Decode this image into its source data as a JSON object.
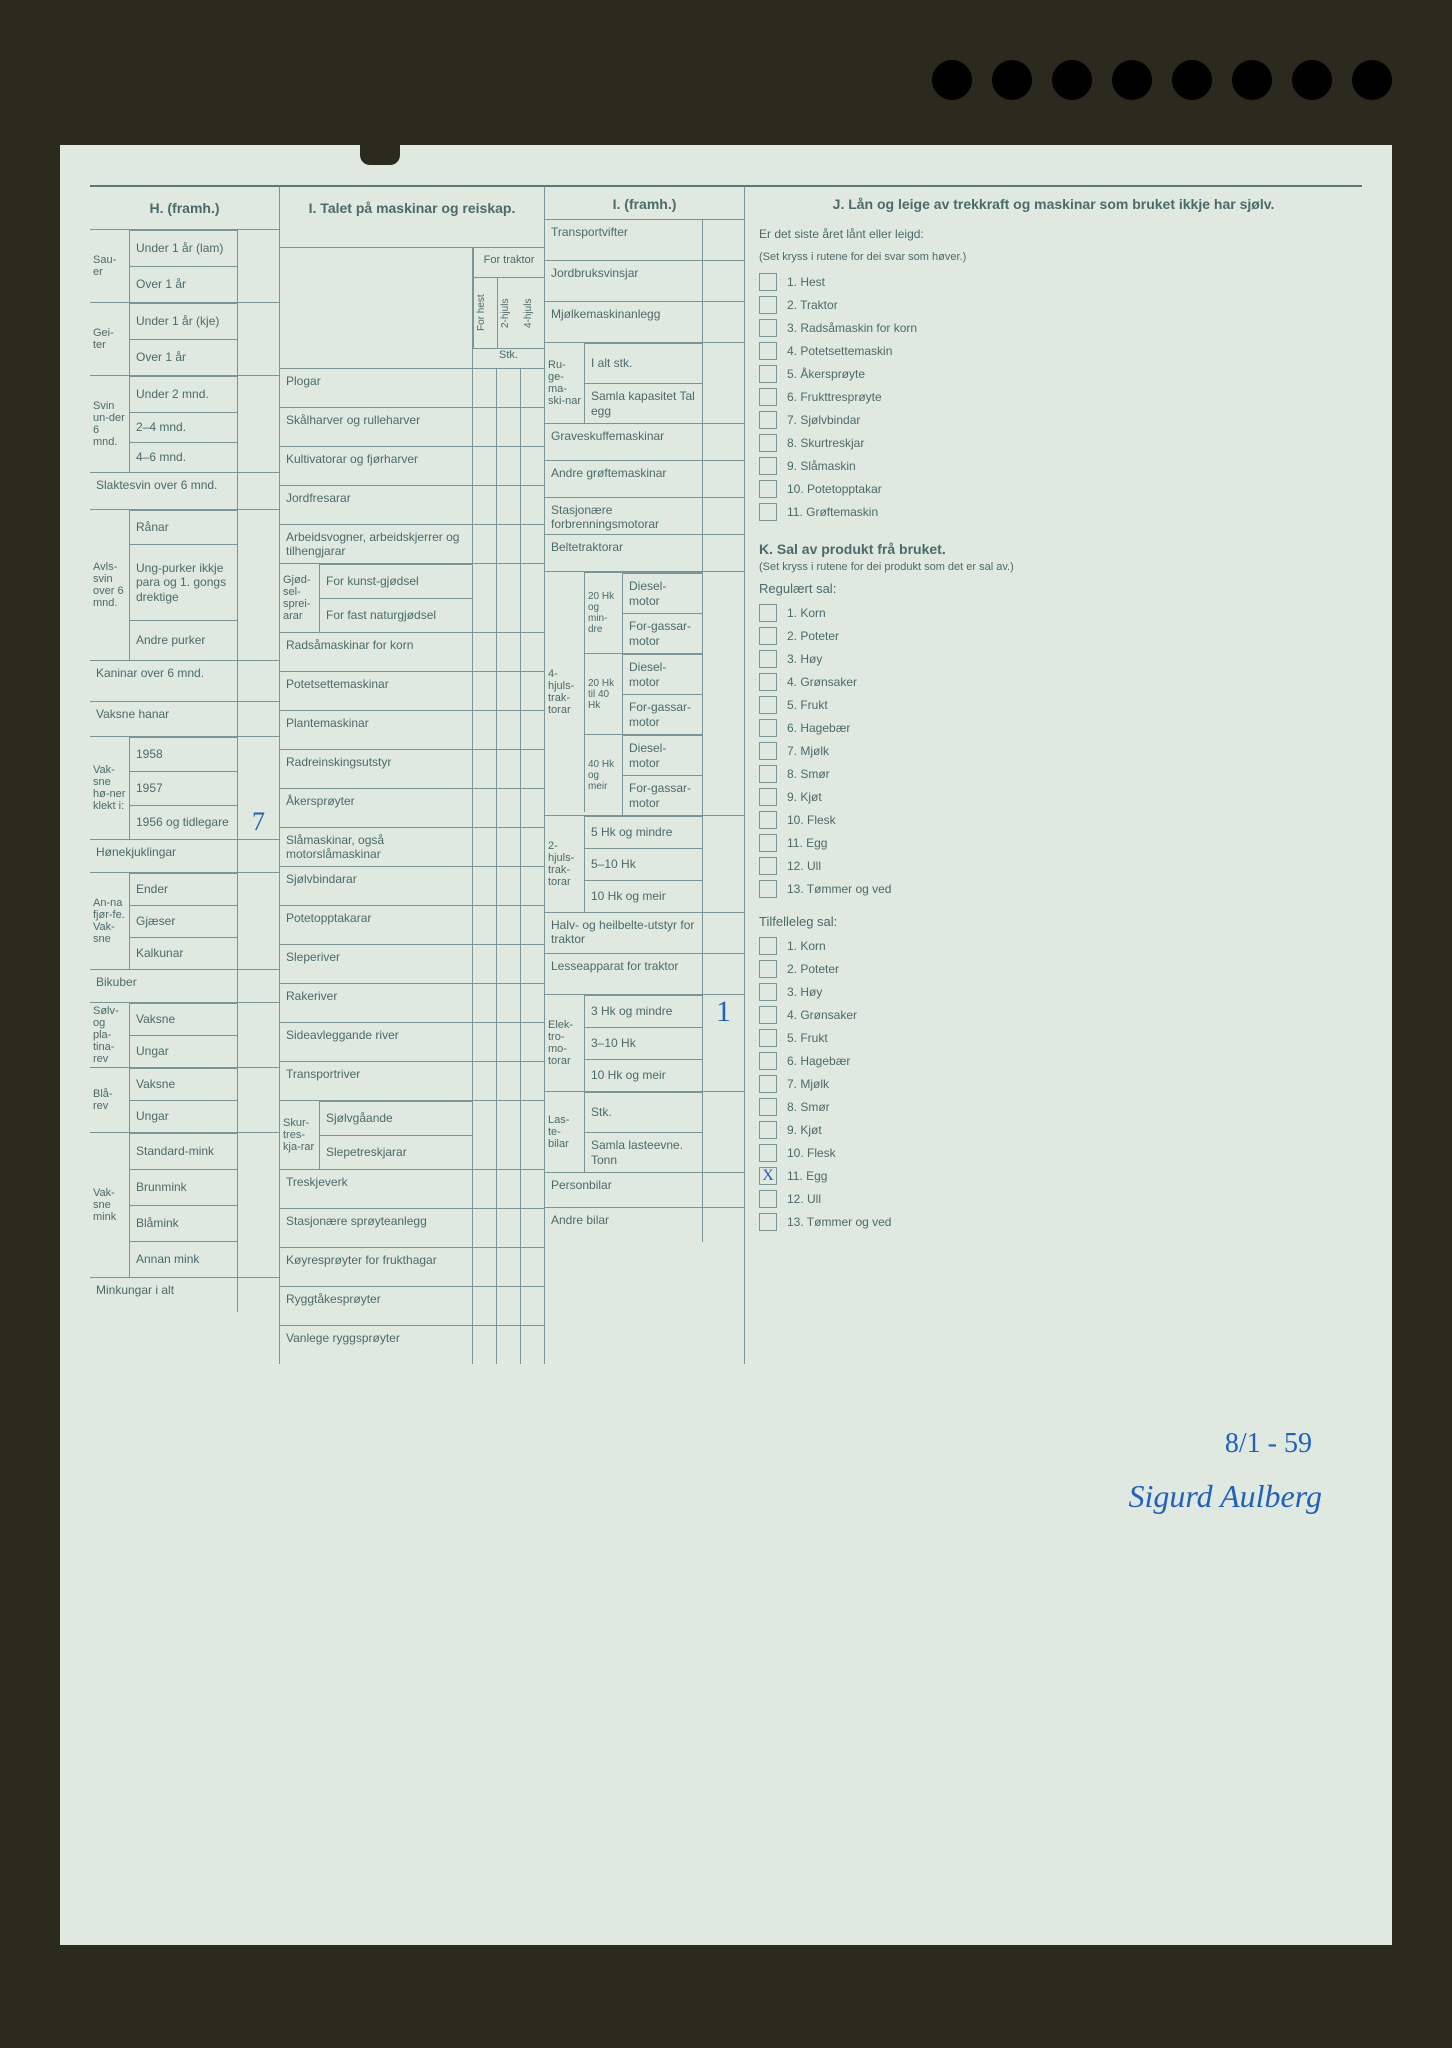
{
  "background_color": "#2a2a1f",
  "paper_color": "#dfe9df",
  "line_color": "#7a9595",
  "text_color": "#4a6b6b",
  "handwriting_color": "#2060c0",
  "hole_count": 8,
  "sections": {
    "H": {
      "title": "H. (framh.)",
      "groups": [
        {
          "side": "Sau-er",
          "rows": [
            "Under 1 år (lam)",
            "Over 1 år"
          ]
        },
        {
          "side": "Gei-ter",
          "rows": [
            "Under 1 år (kje)",
            "Over 1 år"
          ]
        },
        {
          "side": "Svin un-der 6 mnd.",
          "rows": [
            "Under 2 mnd.",
            "2–4 mnd.",
            "4–6 mnd."
          ]
        },
        {
          "side": "",
          "rows": [
            "Slaktesvin over 6 mnd."
          ]
        },
        {
          "side": "Avls-svin over 6 mnd.",
          "rows": [
            "Rånar",
            "Ung-purker ikkje para og 1. gongs drektige",
            "Andre purker"
          ]
        },
        {
          "side": "",
          "rows": [
            "Kaninar over 6 mnd."
          ]
        },
        {
          "side": "",
          "rows": [
            "Vaksne hanar"
          ]
        },
        {
          "side": "Vak-sne hø-ner klekt i:",
          "rows": [
            "1958",
            "1957",
            "1956 og tidlegare"
          ]
        },
        {
          "side": "",
          "rows": [
            "Hønekjuklingar"
          ]
        },
        {
          "side": "An-na fjør-fe. Vak-sne",
          "rows": [
            "Ender",
            "Gjæser",
            "Kalkunar"
          ]
        },
        {
          "side": "",
          "rows": [
            "Bikuber"
          ]
        },
        {
          "side": "Sølv-og pla-tina-rev",
          "rows": [
            "Vaksne",
            "Ungar"
          ]
        },
        {
          "side": "Blå-rev",
          "rows": [
            "Vaksne",
            "Ungar"
          ]
        },
        {
          "side": "Vak-sne mink",
          "rows": [
            "Standard-mink",
            "Brunmink",
            "Blåmink",
            "Annan mink"
          ]
        },
        {
          "side": "",
          "rows": [
            "Minkungar i alt"
          ]
        }
      ],
      "value_1956": "7"
    },
    "I1": {
      "title": "I. Talet på maskinar og reiskap.",
      "col_headers": {
        "group": "For traktor",
        "cols": [
          "For hest",
          "2-hjuls",
          "4-hjuls"
        ],
        "below": "Stk."
      },
      "rows": [
        "Plogar",
        "Skålharver og rulleharver",
        "Kultivatorar og fjørharver",
        "Jordfresarar",
        "Arbeidsvogner, arbeidskjerrer og tilhengjarar",
        {
          "side": "Gjød-sel-sprei-arar",
          "sub": [
            "For kunst-gjødsel",
            "For fast naturgjødsel"
          ]
        },
        "Radsåmaskinar for korn",
        "Potetsettemaskinar",
        "Plantemaskinar",
        "Radreinskingsutstyr",
        "Åkersprøyter",
        "Slåmaskinar, også motorslåmaskinar",
        "Sjølvbindarar",
        "Potetopptakarar",
        "Sleperiver",
        "Rakeriver",
        "Sideavleggande river",
        "Transportriver",
        {
          "side": "Skur-tres-kja-rar",
          "sub": [
            "Sjølvgåande",
            "Slepetreskjarar"
          ]
        },
        "Treskjeverk",
        "Stasjonære sprøyteanlegg",
        "Køyresprøyter for frukthagar",
        "Ryggtåkesprøyter",
        "Vanlege ryggsprøyter"
      ]
    },
    "I2": {
      "title": "I. (framh.)",
      "rows_top": [
        "Transportvifter",
        "Jordbruksvinsjar",
        "Mjølkemaskinanlegg"
      ],
      "ruge": {
        "side": "Ru-ge-ma-ski-nar",
        "sub": [
          "I alt stk.",
          "Samla kapasitet Tal egg"
        ]
      },
      "rows_mid": [
        "Graveskuffemaskinar",
        "Andre grøftemaskinar",
        "Stasjonære forbrenningsmotorar",
        "Beltetraktorar"
      ],
      "traktor4": {
        "side": "4-hjuls-trak-torar",
        "groups": [
          {
            "hk": "20 Hk og min-dre",
            "sub": [
              "Diesel-motor",
              "For-gassar-motor"
            ]
          },
          {
            "hk": "20 Hk til 40 Hk",
            "sub": [
              "Diesel-motor",
              "For-gassar-motor"
            ]
          },
          {
            "hk": "40 Hk og meir",
            "sub": [
              "Diesel-motor",
              "For-gassar-motor"
            ]
          }
        ]
      },
      "traktor2": {
        "side": "2-hjuls-trak-torar",
        "sub": [
          "5 Hk og mindre",
          "5–10 Hk",
          "10 Hk og meir"
        ]
      },
      "rows_after": [
        "Halv- og heilbelte-utstyr for traktor",
        "Lesseapparat for traktor"
      ],
      "elektro": {
        "side": "Elek-tro-mo-torar",
        "sub": [
          "3 Hk og mindre",
          "3–10 Hk",
          "10 Hk og meir"
        ],
        "value_3hk": "1"
      },
      "laste": {
        "side": "Las-te-bilar",
        "sub": [
          "Stk.",
          "Samla lasteevne. Tonn"
        ]
      },
      "rows_end": [
        "Personbilar",
        "Andre bilar"
      ]
    },
    "J": {
      "title": "J. Lån og leige av trekkraft og maskinar som bruket ikkje har sjølv.",
      "sub": "Er det siste året lånt eller leigd:",
      "hint": "(Set kryss i rutene for dei svar som høver.)",
      "items": [
        "1. Hest",
        "2. Traktor",
        "3. Radsåmaskin for korn",
        "4. Potetsettemaskin",
        "5. Åkersprøyte",
        "6. Frukttresprøyte",
        "7. Sjølvbindar",
        "8. Skurtreskjar",
        "9. Slåmaskin",
        "10. Potetopptakar",
        "11. Grøftemaskin"
      ]
    },
    "K": {
      "title": "K. Sal av produkt frå bruket.",
      "hint": "(Set kryss i rutene for dei produkt som det er sal av.)",
      "reg_head": "Regulært sal:",
      "reg_items": [
        "1. Korn",
        "2. Poteter",
        "3. Høy",
        "4. Grønsaker",
        "5. Frukt",
        "6. Hagebær",
        "7. Mjølk",
        "8. Smør",
        "9. Kjøt",
        "10. Flesk",
        "11. Egg",
        "12. Ull",
        "13. Tømmer og ved"
      ],
      "tilf_head": "Tilfelleleg sal:",
      "tilf_items": [
        "1. Korn",
        "2. Poteter",
        "3. Høy",
        "4. Grønsaker",
        "5. Frukt",
        "6. Hagebær",
        "7. Mjølk",
        "8. Smør",
        "9. Kjøt",
        "10. Flesk",
        "11. Egg",
        "12. Ull",
        "13. Tømmer og ved"
      ],
      "tilf_checked_index": 10
    },
    "handwriting": {
      "date": "8/1 - 59",
      "signature": "Sigurd Aulberg"
    }
  }
}
